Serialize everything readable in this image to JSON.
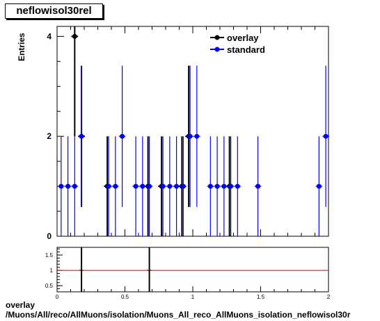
{
  "histogram": {
    "name": "neflowisol30rel",
    "ylabel": "Entries",
    "xlabel_partial": "/Muons/All/reco/AllMuons/isolation/Muons_All_reco_AllMuons_isolation_neflowisol30r"
  },
  "footer": {
    "line1": "overlay",
    "line2": "/Muons/All/reco/AllMuons/isolation/Muons_All_reco_AllMuons_isolation_neflowisol30r"
  },
  "chart_data": [
    {
      "type": "scatter",
      "title": "neflowisol30rel",
      "ylabel": "Entries",
      "xlim": [
        0,
        2
      ],
      "ylim": [
        0,
        4.2
      ],
      "yticks": [
        0,
        2,
        4
      ],
      "legend_position": "top-right",
      "series": [
        {
          "name": "overlay",
          "color": "#000000",
          "points": [
            {
              "x": 0.13,
              "y": 4
            },
            {
              "x": 0.18,
              "y": 2
            },
            {
              "x": 0.37,
              "y": 1
            },
            {
              "x": 0.67,
              "y": 1
            },
            {
              "x": 0.77,
              "y": 1
            },
            {
              "x": 0.92,
              "y": 1
            },
            {
              "x": 0.97,
              "y": 2
            },
            {
              "x": 1.27,
              "y": 1
            }
          ]
        },
        {
          "name": "standard",
          "color": "#0000ff",
          "points": [
            {
              "x": 0.03,
              "y": 1
            },
            {
              "x": 0.08,
              "y": 1
            },
            {
              "x": 0.13,
              "y": 1
            },
            {
              "x": 0.18,
              "y": 2
            },
            {
              "x": 0.38,
              "y": 1
            },
            {
              "x": 0.43,
              "y": 1
            },
            {
              "x": 0.48,
              "y": 2
            },
            {
              "x": 0.58,
              "y": 1
            },
            {
              "x": 0.63,
              "y": 1
            },
            {
              "x": 0.68,
              "y": 1
            },
            {
              "x": 0.78,
              "y": 1
            },
            {
              "x": 0.83,
              "y": 1
            },
            {
              "x": 0.88,
              "y": 1
            },
            {
              "x": 0.93,
              "y": 1
            },
            {
              "x": 0.98,
              "y": 2
            },
            {
              "x": 1.03,
              "y": 2
            },
            {
              "x": 1.13,
              "y": 1
            },
            {
              "x": 1.18,
              "y": 1
            },
            {
              "x": 1.23,
              "y": 1
            },
            {
              "x": 1.28,
              "y": 1
            },
            {
              "x": 1.33,
              "y": 1
            },
            {
              "x": 1.48,
              "y": 1
            },
            {
              "x": 1.93,
              "y": 1
            },
            {
              "x": 1.98,
              "y": 2
            }
          ]
        }
      ]
    },
    {
      "type": "scatter",
      "title": "",
      "xlim": [
        0,
        2
      ],
      "ylim": [
        0.3,
        1.75
      ],
      "xticks": [
        0,
        0.5,
        1,
        1.5,
        2
      ],
      "yticks": [
        0.5,
        1,
        1.5
      ],
      "reference_line": {
        "y": 1,
        "color": "#cc0000"
      },
      "series": [
        {
          "name": "",
          "color": "#000000",
          "points": [
            {
              "x": 0.18,
              "y": 1
            },
            {
              "x": 0.68,
              "y": 1
            }
          ]
        }
      ]
    }
  ]
}
